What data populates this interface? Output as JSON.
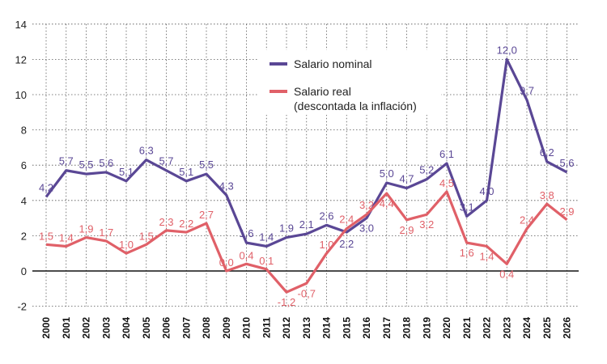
{
  "chart_data": {
    "type": "line",
    "categories": [
      "2000",
      "2001",
      "2002",
      "2003",
      "2004",
      "2005",
      "2006",
      "2007",
      "2008",
      "2009",
      "2010",
      "2011",
      "2012",
      "2013",
      "2014",
      "2015",
      "2016",
      "2017",
      "2018",
      "2019",
      "2020",
      "2021",
      "2022",
      "2023",
      "2024",
      "2025",
      "2026"
    ],
    "series": [
      {
        "name": "Salario nominal",
        "color": "#5a4795",
        "values": [
          4.2,
          5.7,
          5.5,
          5.6,
          5.1,
          6.3,
          5.7,
          5.1,
          5.5,
          4.3,
          1.6,
          1.4,
          1.9,
          2.1,
          2.6,
          2.2,
          3.0,
          5.0,
          4.7,
          5.2,
          6.1,
          3.1,
          4.0,
          12.0,
          9.7,
          6.2,
          5.6
        ],
        "labels": [
          "4,2",
          "5,7",
          "5,5",
          "5,6",
          "5,1",
          "6,3",
          "5,7",
          "5,1",
          "5,5",
          "4,3",
          "1,6",
          "1,4",
          "1,9",
          "2,1",
          "2,6",
          "2,2",
          "3,0",
          "5,0",
          "4,7",
          "5,2",
          "6,1",
          "3,1",
          "4,0",
          "12,0",
          "9,7",
          "6,2",
          "5,6"
        ]
      },
      {
        "name": "Salario real\n(descontada la inflación)",
        "legend_lines": [
          "Salario real",
          "(descontada la inflación)"
        ],
        "color": "#e06068",
        "values": [
          1.5,
          1.4,
          1.9,
          1.7,
          1.0,
          1.5,
          2.3,
          2.2,
          2.7,
          0.0,
          0.4,
          0.1,
          -1.2,
          -0.7,
          1.0,
          2.4,
          3.2,
          4.4,
          2.9,
          3.2,
          4.5,
          1.6,
          1.4,
          0.4,
          2.4,
          3.8,
          2.9
        ],
        "labels": [
          "1,5",
          "1,4",
          "1,9",
          "1,7",
          "1,0",
          "1,5",
          "2,3",
          "2,2",
          "2,7",
          "0,0",
          "0,4",
          "0,1",
          "-1,2",
          "-0,7",
          "1,0",
          "2,4",
          "3,2",
          "4,4",
          "2,9",
          "3,2",
          "4,5",
          "1,6",
          "1,4",
          "0,4",
          "2,4",
          "3,8",
          "2,9"
        ]
      }
    ],
    "yticks": [
      "14",
      "12",
      "10",
      "8",
      "6",
      "4",
      "2",
      "0",
      "-2"
    ],
    "ylim": [
      -2,
      14
    ],
    "grid": true,
    "legend_position": "top-center"
  }
}
